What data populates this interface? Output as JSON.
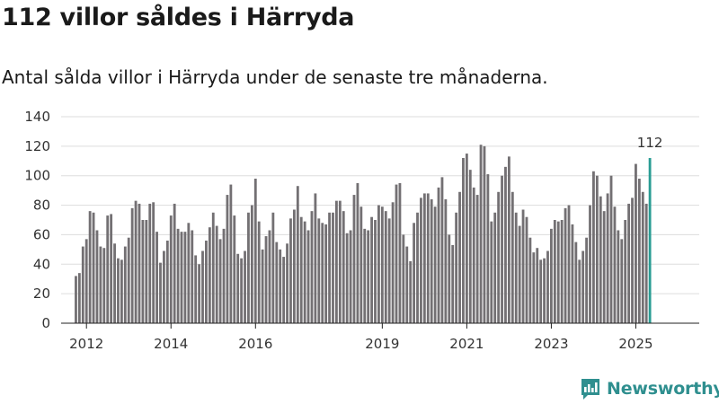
{
  "title": "112 villor såldes i Härryda",
  "subtitle": "Antal sålda villor i Härryda under de senaste tre månaderna.",
  "brand": {
    "name": "Newsworthy",
    "icon": "newsworthy-logo-icon",
    "color": "#2f8f8f"
  },
  "colors": {
    "bar": "#737073",
    "highlight": "#2a9d94",
    "grid": "#dddddd",
    "axis": "#222222",
    "text": "#333333"
  },
  "chart_data": {
    "type": "bar",
    "title": "Antal sålda villor i Härryda",
    "xlabel": "",
    "ylabel": "",
    "ylim": [
      0,
      140
    ],
    "yticks": [
      0,
      20,
      40,
      60,
      80,
      100,
      120,
      140
    ],
    "x_start": 2011.75,
    "x_step": 0.08333,
    "x_range": [
      2011.4,
      2026.5
    ],
    "xticks": [
      {
        "label": "2012",
        "value": 2012
      },
      {
        "label": "2014",
        "value": 2014
      },
      {
        "label": "2016",
        "value": 2016
      },
      {
        "label": "2019",
        "value": 2019
      },
      {
        "label": "2021",
        "value": 2021
      },
      {
        "label": "2023",
        "value": 2023
      },
      {
        "label": "2025",
        "value": 2025
      }
    ],
    "values": [
      32,
      34,
      52,
      57,
      76,
      75,
      63,
      52,
      51,
      73,
      74,
      54,
      44,
      43,
      52,
      58,
      78,
      83,
      81,
      70,
      70,
      81,
      82,
      62,
      41,
      49,
      56,
      73,
      81,
      64,
      62,
      62,
      68,
      63,
      46,
      40,
      49,
      56,
      65,
      75,
      66,
      57,
      64,
      87,
      94,
      73,
      47,
      44,
      49,
      75,
      80,
      98,
      69,
      50,
      59,
      63,
      75,
      55,
      50,
      45,
      54,
      71,
      77,
      93,
      72,
      69,
      63,
      76,
      88,
      71,
      68,
      67,
      75,
      75,
      83,
      83,
      76,
      61,
      63,
      87,
      95,
      79,
      64,
      63,
      72,
      70,
      80,
      79,
      76,
      71,
      82,
      94,
      95,
      60,
      52,
      42,
      68,
      75,
      85,
      88,
      88,
      84,
      79,
      92,
      99,
      84,
      60,
      53,
      75,
      89,
      112,
      115,
      104,
      92,
      87,
      121,
      120,
      101,
      69,
      75,
      89,
      100,
      106,
      113,
      89,
      75,
      66,
      77,
      72,
      58,
      48,
      51,
      43,
      44,
      49,
      64,
      70,
      69,
      70,
      78,
      80,
      67,
      55,
      43,
      49,
      58,
      80,
      103,
      100,
      86,
      76,
      88,
      100,
      79,
      63,
      57,
      70,
      81,
      85,
      108,
      98,
      89,
      81,
      112
    ],
    "highlight_last": true,
    "annotations": [
      {
        "label": "112",
        "target": "last-bar"
      }
    ]
  }
}
